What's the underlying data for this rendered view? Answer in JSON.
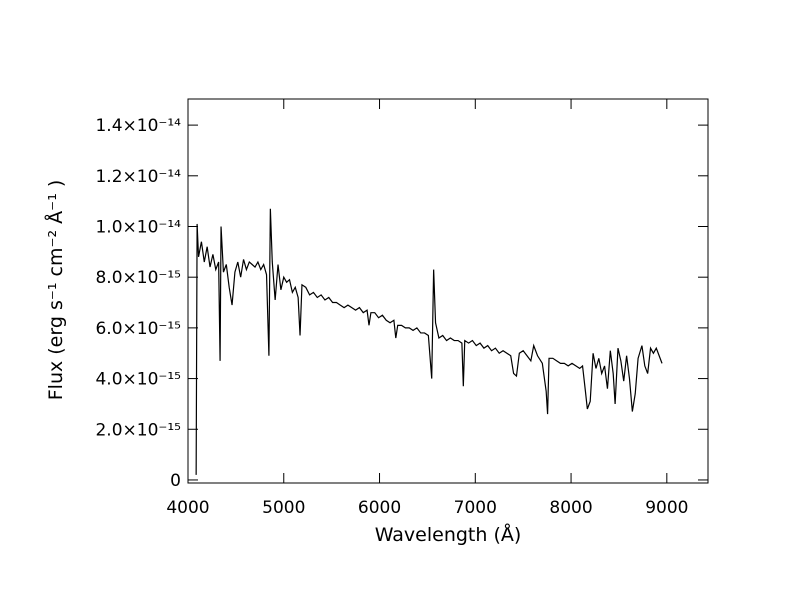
{
  "chart_data": {
    "type": "line",
    "xlabel": "Wavelength (Å)",
    "ylabel": "Flux (erg s⁻¹ cm⁻² Å⁻¹ )",
    "xlim": [
      4000,
      9430
    ],
    "ylim": [
      -1.2e-16,
      1.503e-14
    ],
    "xticks": [
      4000,
      5000,
      6000,
      7000,
      8000,
      9000
    ],
    "yticks": [
      0,
      {
        "value": 2e-15,
        "label": "2.0×10⁻¹⁵"
      },
      {
        "value": 4e-15,
        "label": "4.0×10⁻¹⁵"
      },
      {
        "value": 6e-15,
        "label": "6.0×10⁻¹⁵"
      },
      {
        "value": 8e-15,
        "label": "8.0×10⁻¹⁵"
      },
      {
        "value": 1e-14,
        "label": "1.0×10⁻¹⁴"
      },
      {
        "value": 1.2e-14,
        "label": "1.2×10⁻¹⁴"
      },
      {
        "value": 1.4e-14,
        "label": "1.4×10⁻¹⁴"
      }
    ],
    "series": [
      {
        "color": "#000000",
        "x": [
          4085,
          4095,
          4110,
          4140,
          4170,
          4200,
          4230,
          4260,
          4290,
          4320,
          4335,
          4345,
          4370,
          4400,
          4430,
          4460,
          4490,
          4520,
          4550,
          4580,
          4610,
          4640,
          4670,
          4700,
          4730,
          4760,
          4790,
          4820,
          4845,
          4860,
          4880,
          4910,
          4940,
          4970,
          5000,
          5030,
          5060,
          5090,
          5120,
          5150,
          5170,
          5190,
          5230,
          5270,
          5310,
          5350,
          5390,
          5430,
          5470,
          5510,
          5550,
          5590,
          5630,
          5670,
          5710,
          5750,
          5790,
          5830,
          5870,
          5890,
          5910,
          5950,
          5990,
          6030,
          6070,
          6110,
          6150,
          6170,
          6190,
          6230,
          6270,
          6310,
          6350,
          6390,
          6430,
          6470,
          6510,
          6545,
          6565,
          6585,
          6620,
          6660,
          6700,
          6740,
          6780,
          6820,
          6860,
          6875,
          6890,
          6930,
          6970,
          7010,
          7050,
          7090,
          7130,
          7170,
          7210,
          7250,
          7290,
          7330,
          7370,
          7400,
          7430,
          7460,
          7500,
          7540,
          7580,
          7610,
          7650,
          7700,
          7740,
          7755,
          7770,
          7810,
          7850,
          7890,
          7930,
          7970,
          8010,
          8050,
          8090,
          8120,
          8150,
          8170,
          8200,
          8230,
          8260,
          8290,
          8320,
          8350,
          8380,
          8410,
          8440,
          8460,
          8490,
          8520,
          8550,
          8580,
          8610,
          8640,
          8670,
          8700,
          8740,
          8770,
          8800,
          8830,
          8860,
          8890,
          8920,
          8950
        ],
        "values": [
          2e-16,
          1.01e-14,
          8.8e-15,
          9.4e-15,
          8.6e-15,
          9.2e-15,
          8.4e-15,
          8.9e-15,
          8.3e-15,
          8.6e-15,
          4.7e-15,
          1e-14,
          8.2e-15,
          8.5e-15,
          7.6e-15,
          6.9e-15,
          8.2e-15,
          8.6e-15,
          8e-15,
          8.7e-15,
          8.3e-15,
          8.6e-15,
          8.5e-15,
          8.4e-15,
          8.6e-15,
          8.3e-15,
          8.5e-15,
          8.1e-15,
          4.9e-15,
          1.07e-14,
          8.6e-15,
          7.1e-15,
          8.5e-15,
          7.5e-15,
          8e-15,
          7.8e-15,
          7.9e-15,
          7.4e-15,
          7.6e-15,
          7.2e-15,
          5.7e-15,
          7.7e-15,
          7.6e-15,
          7.3e-15,
          7.4e-15,
          7.2e-15,
          7.3e-15,
          7.1e-15,
          7.2e-15,
          7e-15,
          7e-15,
          6.9e-15,
          6.8e-15,
          6.9e-15,
          6.8e-15,
          6.7e-15,
          6.8e-15,
          6.6e-15,
          6.7e-15,
          6.1e-15,
          6.6e-15,
          6.6e-15,
          6.4e-15,
          6.5e-15,
          6.3e-15,
          6.2e-15,
          6.3e-15,
          5.6e-15,
          6.1e-15,
          6.1e-15,
          6e-15,
          6e-15,
          5.9e-15,
          6e-15,
          5.8e-15,
          5.8e-15,
          5.7e-15,
          4e-15,
          8.3e-15,
          6.2e-15,
          5.6e-15,
          5.7e-15,
          5.5e-15,
          5.6e-15,
          5.5e-15,
          5.5e-15,
          5.4e-15,
          3.7e-15,
          5.5e-15,
          5.4e-15,
          5.5e-15,
          5.3e-15,
          5.4e-15,
          5.2e-15,
          5.3e-15,
          5.1e-15,
          5.2e-15,
          5e-15,
          5.1e-15,
          5e-15,
          4.9e-15,
          4.2e-15,
          4.1e-15,
          5e-15,
          5.1e-15,
          4.9e-15,
          4.7e-15,
          5.3e-15,
          4.9e-15,
          4.6e-15,
          3.5e-15,
          2.6e-15,
          4.8e-15,
          4.8e-15,
          4.7e-15,
          4.6e-15,
          4.6e-15,
          4.5e-15,
          4.6e-15,
          4.5e-15,
          4.4e-15,
          4.5e-15,
          3.5e-15,
          2.8e-15,
          3.1e-15,
          5e-15,
          4.4e-15,
          4.8e-15,
          4.2e-15,
          4.5e-15,
          3.6e-15,
          5.1e-15,
          4.2e-15,
          3e-15,
          5.2e-15,
          4.7e-15,
          3.9e-15,
          4.9e-15,
          4e-15,
          2.7e-15,
          3.4e-15,
          4.8e-15,
          5.3e-15,
          4.5e-15,
          4.2e-15,
          5.2e-15,
          5e-15,
          5.2e-15,
          4.9e-15,
          4.6e-15
        ]
      }
    ]
  }
}
